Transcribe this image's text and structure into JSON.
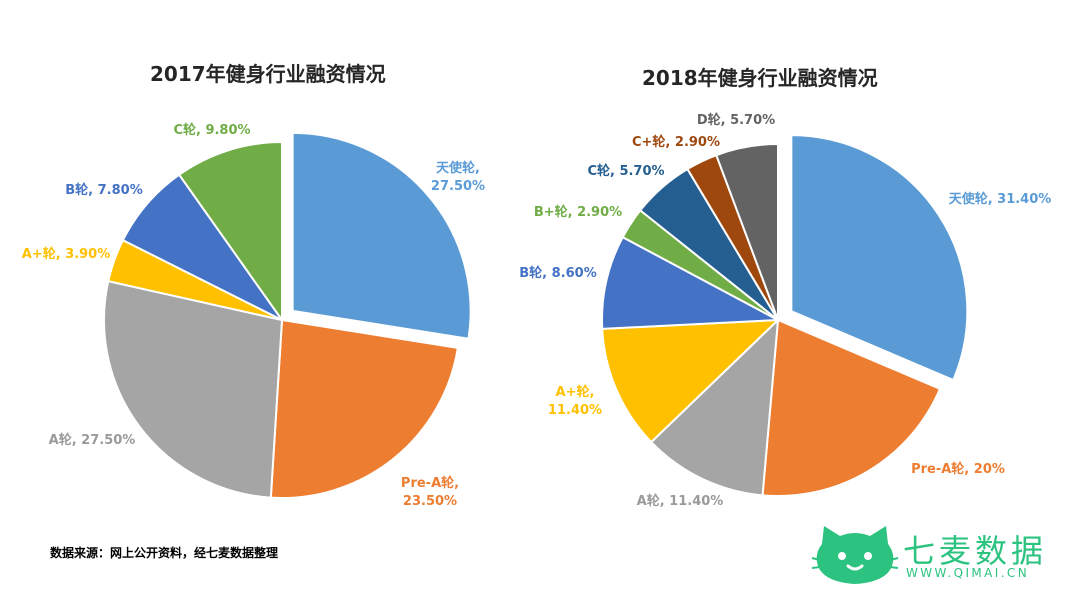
{
  "chart_data": [
    {
      "type": "pie",
      "title": "2017年健身行业融资情况",
      "exploded": "天使轮",
      "slices": [
        {
          "name": "天使轮",
          "value": 27.5,
          "label": "天使轮,\n27.50%",
          "color": "#5b9bd5"
        },
        {
          "name": "Pre-A轮",
          "value": 23.5,
          "label": "Pre-A轮,\n23.50%",
          "color": "#ed7d31"
        },
        {
          "name": "A轮",
          "value": 27.5,
          "label": "A轮, 27.50%",
          "color": "#a5a5a5"
        },
        {
          "name": "A+轮",
          "value": 3.9,
          "label": "A+轮, 3.90%",
          "color": "#ffc000"
        },
        {
          "name": "B轮",
          "value": 7.8,
          "label": "B轮, 7.80%",
          "color": "#4472c4"
        },
        {
          "name": "C轮",
          "value": 9.8,
          "label": "C轮, 9.80%",
          "color": "#70ad47"
        }
      ]
    },
    {
      "type": "pie",
      "title": "2018年健身行业融资情况",
      "exploded": "天使轮",
      "slices": [
        {
          "name": "天使轮",
          "value": 31.4,
          "label": "天使轮, 31.40%",
          "color": "#5b9bd5"
        },
        {
          "name": "Pre-A轮",
          "value": 20,
          "label": "Pre-A轮, 20%",
          "color": "#ed7d31"
        },
        {
          "name": "A轮",
          "value": 11.4,
          "label": "A轮, 11.40%",
          "color": "#a5a5a5"
        },
        {
          "name": "A+轮",
          "value": 11.4,
          "label": "A+轮,\n11.40%",
          "color": "#ffc000"
        },
        {
          "name": "B轮",
          "value": 8.6,
          "label": "B轮, 8.60%",
          "color": "#4472c4"
        },
        {
          "name": "B+轮",
          "value": 2.9,
          "label": "B+轮, 2.90%",
          "color": "#70ad47"
        },
        {
          "name": "C轮",
          "value": 5.7,
          "label": "C轮, 5.70%",
          "color": "#255e91"
        },
        {
          "name": "C+轮",
          "value": 2.9,
          "label": "C+轮, 2.90%",
          "color": "#9e480e"
        },
        {
          "name": "D轮",
          "value": 5.7,
          "label": "D轮, 5.70%",
          "color": "#636363"
        }
      ]
    }
  ],
  "footer": {
    "source": "数据来源：网上公开资料，经七麦数据整理"
  },
  "logo": {
    "name": "七麦数据",
    "url": "WWW.QIMAI.CN",
    "color": "#2bc37f"
  }
}
